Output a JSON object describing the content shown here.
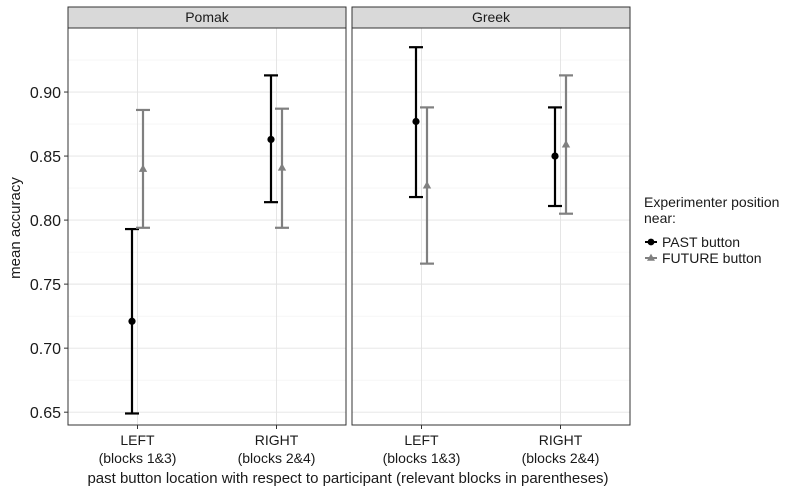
{
  "chart_data": {
    "type": "errorbar",
    "ylabel": "mean accuracy",
    "xlabel": "past button location with respect to participant (relevant blocks in parentheses)",
    "ylim": [
      0.64,
      0.95
    ],
    "yticks": [
      "0.65",
      "0.70",
      "0.75",
      "0.80",
      "0.85",
      "0.90"
    ],
    "categories": [
      {
        "line1": "LEFT",
        "line2": "(blocks 1&3)"
      },
      {
        "line1": "RIGHT",
        "line2": "(blocks 2&4)"
      }
    ],
    "legend": {
      "title_line1": "Experimenter position",
      "title_line2": "near:",
      "position": "right"
    },
    "series_styles": [
      {
        "name": "PAST button",
        "color": "#000000",
        "shape": "circle"
      },
      {
        "name": "FUTURE button",
        "color": "#808080",
        "shape": "triangle"
      }
    ],
    "panels": [
      {
        "name": "Pomak",
        "series": [
          {
            "name": "PAST button",
            "points": [
              {
                "category": "LEFT",
                "mean": 0.721,
                "lower": 0.649,
                "upper": 0.793
              },
              {
                "category": "RIGHT",
                "mean": 0.863,
                "lower": 0.814,
                "upper": 0.913
              }
            ]
          },
          {
            "name": "FUTURE button",
            "points": [
              {
                "category": "LEFT",
                "mean": 0.84,
                "lower": 0.794,
                "upper": 0.886
              },
              {
                "category": "RIGHT",
                "mean": 0.841,
                "lower": 0.794,
                "upper": 0.887
              }
            ]
          }
        ]
      },
      {
        "name": "Greek",
        "series": [
          {
            "name": "PAST button",
            "points": [
              {
                "category": "LEFT",
                "mean": 0.877,
                "lower": 0.818,
                "upper": 0.935
              },
              {
                "category": "RIGHT",
                "mean": 0.85,
                "lower": 0.811,
                "upper": 0.888
              }
            ]
          },
          {
            "name": "FUTURE button",
            "points": [
              {
                "category": "LEFT",
                "mean": 0.827,
                "lower": 0.766,
                "upper": 0.888
              },
              {
                "category": "RIGHT",
                "mean": 0.859,
                "lower": 0.805,
                "upper": 0.913
              }
            ]
          }
        ]
      }
    ]
  }
}
